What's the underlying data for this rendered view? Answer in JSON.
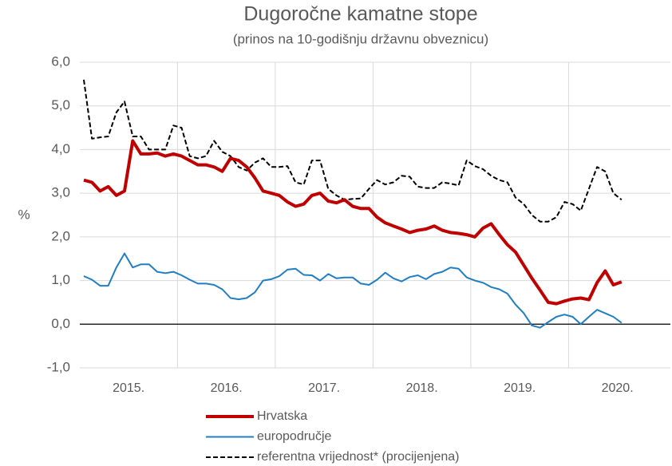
{
  "chart_data": {
    "type": "line",
    "title": "Dugoročne kamatne stope",
    "subtitle": "(prinos na 10-godišnju državnu obveznicu)",
    "ylabel": "%",
    "categories": [
      null,
      null,
      null,
      null,
      null,
      null,
      "2015.",
      null,
      null,
      null,
      null,
      null,
      null,
      null,
      null,
      null,
      null,
      null,
      "2016.",
      null,
      null,
      null,
      null,
      null,
      null,
      null,
      null,
      null,
      null,
      null,
      "2017.",
      null,
      null,
      null,
      null,
      null,
      null,
      null,
      null,
      null,
      null,
      null,
      "2018.",
      null,
      null,
      null,
      null,
      null,
      null,
      null,
      null,
      null,
      null,
      null,
      "2019.",
      null,
      null,
      null,
      null,
      null,
      null,
      null,
      null,
      null,
      null,
      null,
      "2020.",
      null,
      null,
      null,
      null,
      null
    ],
    "ylim": [
      -1,
      6
    ],
    "yticks": [
      {
        "value": -1,
        "label": "-1,0"
      },
      {
        "value": 0,
        "label": "0,0"
      },
      {
        "value": 1,
        "label": "1,0"
      },
      {
        "value": 2,
        "label": "2,0"
      },
      {
        "value": 3,
        "label": "3,0"
      },
      {
        "value": 4,
        "label": "4,0"
      },
      {
        "value": 5,
        "label": "5,0"
      },
      {
        "value": 6,
        "label": "6,0"
      }
    ],
    "grid": true,
    "legend": "bottom",
    "series": [
      {
        "name": "Hrvatska",
        "color": "#c00000",
        "width": 4,
        "dash": false,
        "values": [
          3.3,
          3.25,
          3.05,
          3.15,
          2.95,
          3.05,
          4.2,
          3.9,
          3.9,
          3.92,
          3.85,
          3.9,
          3.85,
          3.75,
          3.65,
          3.65,
          3.6,
          3.5,
          3.8,
          3.75,
          3.6,
          3.35,
          3.05,
          3.0,
          2.95,
          2.8,
          2.7,
          2.75,
          2.95,
          3.0,
          2.82,
          2.78,
          2.85,
          2.7,
          2.65,
          2.65,
          2.45,
          2.32,
          2.25,
          2.18,
          2.1,
          2.15,
          2.18,
          2.25,
          2.15,
          2.1,
          2.08,
          2.05,
          2.0,
          2.2,
          2.3,
          2.05,
          1.82,
          1.65,
          1.35,
          1.05,
          0.78,
          0.5,
          0.47,
          0.53,
          0.58,
          0.6,
          0.56,
          0.95,
          1.22,
          0.9,
          0.97,
          null,
          null,
          null,
          null,
          null
        ]
      },
      {
        "name": "europodručje",
        "color": "#1f7ec4",
        "width": 2,
        "dash": false,
        "values": [
          1.1,
          1.02,
          0.88,
          0.88,
          1.3,
          1.62,
          1.3,
          1.37,
          1.37,
          1.2,
          1.17,
          1.2,
          1.12,
          1.02,
          0.93,
          0.93,
          0.9,
          0.8,
          0.6,
          0.57,
          0.6,
          0.73,
          1.0,
          1.03,
          1.1,
          1.25,
          1.27,
          1.13,
          1.12,
          1.0,
          1.15,
          1.05,
          1.07,
          1.07,
          0.93,
          0.9,
          1.02,
          1.18,
          1.05,
          0.98,
          1.08,
          1.12,
          1.03,
          1.15,
          1.2,
          1.3,
          1.27,
          1.07,
          1.0,
          0.95,
          0.85,
          0.8,
          0.7,
          0.45,
          0.25,
          -0.03,
          -0.08,
          0.05,
          0.17,
          0.22,
          0.17,
          0.0,
          0.17,
          0.33,
          0.25,
          0.17,
          0.03,
          null,
          null,
          null,
          null,
          null
        ]
      },
      {
        "name": "referentna vrijednost* (procijenjena)",
        "color": "#000000",
        "width": 2,
        "dash": true,
        "values": [
          5.6,
          4.25,
          4.28,
          4.3,
          4.85,
          5.1,
          4.3,
          4.3,
          4.0,
          4.0,
          4.0,
          4.55,
          4.5,
          3.85,
          3.8,
          3.85,
          4.2,
          3.95,
          3.85,
          3.6,
          3.52,
          3.7,
          3.8,
          3.6,
          3.6,
          3.62,
          3.25,
          3.2,
          3.75,
          3.75,
          3.1,
          2.95,
          2.85,
          2.87,
          2.88,
          3.1,
          3.3,
          3.2,
          3.25,
          3.4,
          3.38,
          3.15,
          3.12,
          3.12,
          3.25,
          3.22,
          3.18,
          3.75,
          3.62,
          3.55,
          3.4,
          3.3,
          3.25,
          2.9,
          2.75,
          2.5,
          2.35,
          2.35,
          2.45,
          2.8,
          2.75,
          2.6,
          3.1,
          3.6,
          3.5,
          3.0,
          2.85,
          null,
          null,
          null,
          null,
          null
        ]
      }
    ]
  }
}
